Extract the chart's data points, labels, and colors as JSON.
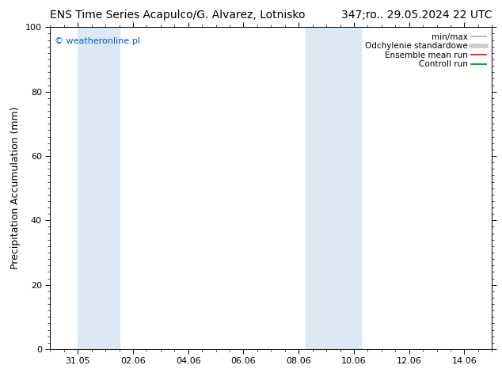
{
  "title_left": "ENS Time Series Acapulco/G. Alvarez, Lotnisko",
  "title_right": "347;ro.. 29.05.2024 22 UTC",
  "ylabel": "Precipitation Accumulation (mm)",
  "watermark": "© weatheronline.pl",
  "watermark_color": "#0055cc",
  "ylim": [
    0,
    100
  ],
  "yticks": [
    0,
    20,
    40,
    60,
    80,
    100
  ],
  "xtick_labels": [
    "31.05",
    "02.06",
    "04.06",
    "06.06",
    "08.06",
    "10.06",
    "12.06",
    "14.06"
  ],
  "xtick_positions": [
    1,
    3,
    5,
    7,
    9,
    11,
    13,
    15
  ],
  "xlim": [
    0,
    16
  ],
  "background_color": "#ffffff",
  "plot_bg_color": "#ffffff",
  "band1_x0": 1.0,
  "band1_x1": 2.5,
  "band2_x0": 9.25,
  "band2_x1": 11.25,
  "band_color": "#dce9f5",
  "legend_entries": [
    {
      "label": "min/max",
      "color": "#aaaaaa",
      "lw": 1.2
    },
    {
      "label": "Odchylenie standardowe",
      "color": "#cccccc",
      "lw": 4
    },
    {
      "label": "Ensemble mean run",
      "color": "#ff0000",
      "lw": 1.2
    },
    {
      "label": "Controll run",
      "color": "#008800",
      "lw": 1.2
    }
  ],
  "title_fontsize": 10,
  "axis_label_fontsize": 9,
  "tick_fontsize": 8,
  "legend_fontsize": 7.5
}
